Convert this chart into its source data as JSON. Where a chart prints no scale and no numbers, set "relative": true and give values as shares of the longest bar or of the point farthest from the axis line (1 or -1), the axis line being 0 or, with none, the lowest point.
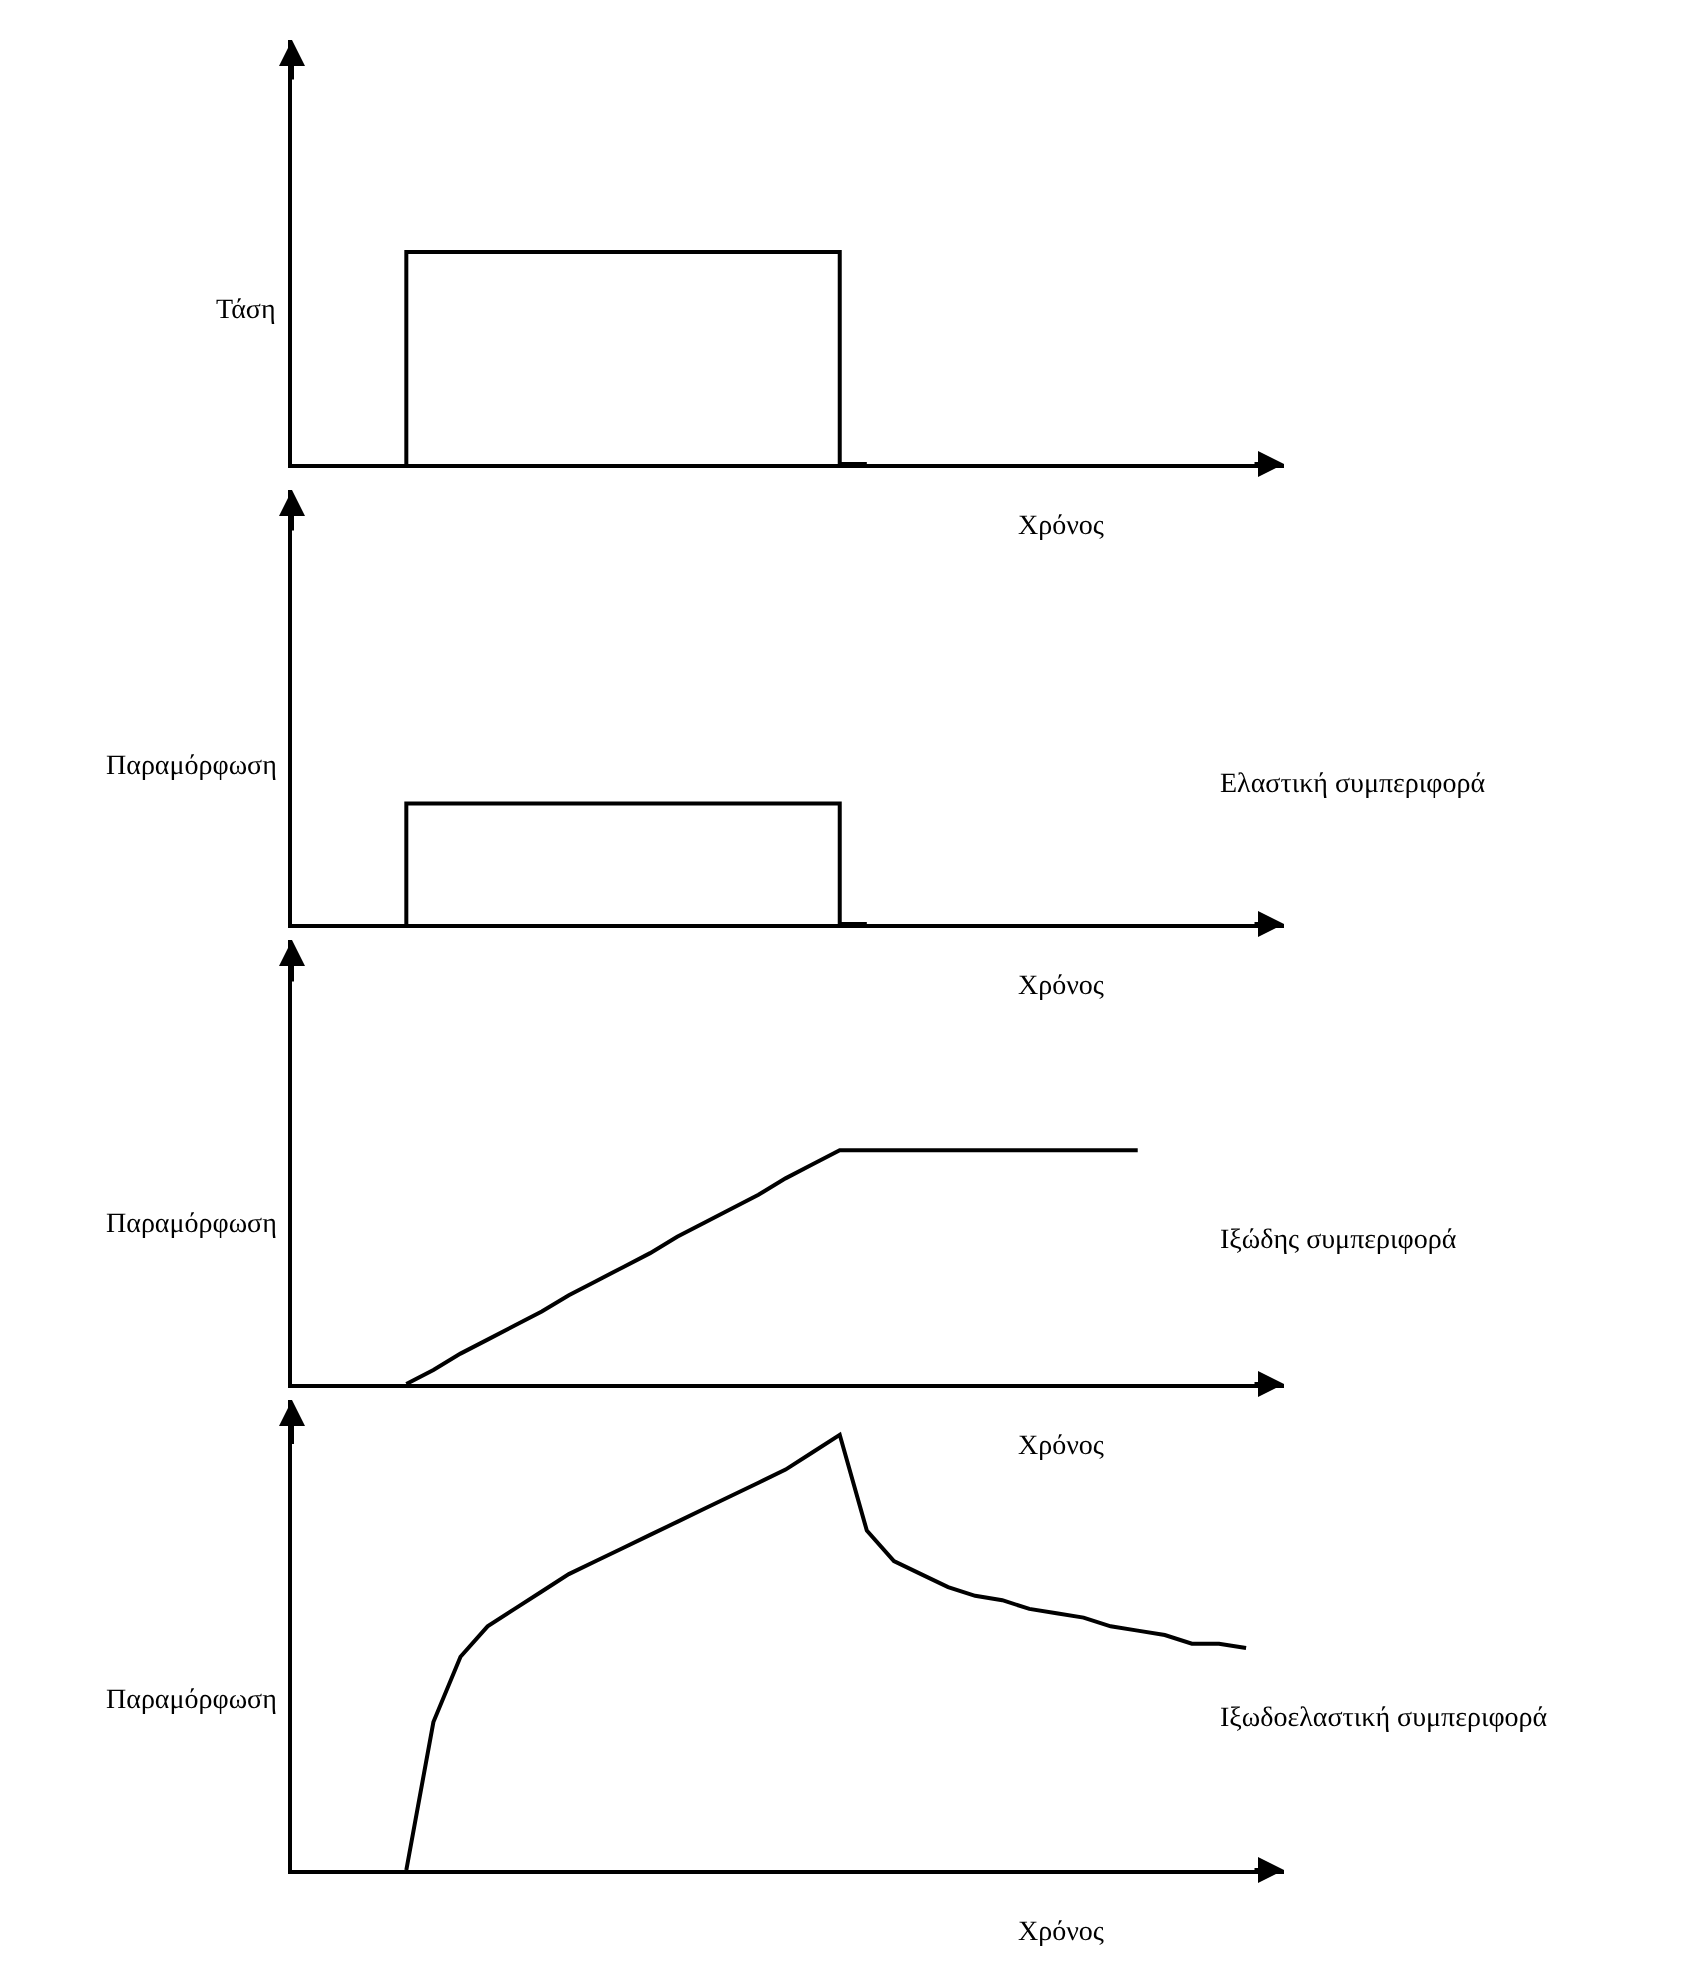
{
  "chart_data": [
    {
      "type": "step",
      "relative": true,
      "ylabel": "Τάση",
      "xlabel": "Χρόνος",
      "color": "#000000",
      "categories": [
        null,
        null,
        null,
        null,
        null,
        null,
        null,
        null,
        null,
        null,
        null,
        null,
        null,
        null,
        null,
        null,
        null,
        null,
        null,
        null,
        null,
        null,
        null,
        null,
        null,
        null,
        null,
        null,
        null,
        null,
        null,
        null,
        null,
        null,
        null,
        null
      ],
      "values": [
        null,
        null,
        null,
        null,
        0,
        1,
        1,
        1,
        1,
        1,
        1,
        1,
        1,
        1,
        1,
        1,
        1,
        1,
        1,
        1,
        1,
        0,
        null,
        null,
        null,
        null,
        null,
        null,
        null,
        null,
        null,
        null,
        null,
        null,
        null,
        null
      ]
    },
    {
      "type": "step",
      "relative": true,
      "ylabel": "Παραμόρφωση",
      "xlabel": "Χρόνος",
      "annotations": [
        "Ελαστική συμπεριφορά"
      ],
      "color": "#000000",
      "categories": [
        null,
        null,
        null,
        null,
        null,
        null,
        null,
        null,
        null,
        null,
        null,
        null,
        null,
        null,
        null,
        null,
        null,
        null,
        null,
        null,
        null,
        null,
        null,
        null,
        null,
        null,
        null,
        null,
        null,
        null,
        null,
        null,
        null,
        null,
        null,
        null
      ],
      "values": [
        null,
        null,
        null,
        null,
        0,
        1,
        1,
        1,
        1,
        1,
        1,
        1,
        1,
        1,
        1,
        1,
        1,
        1,
        1,
        1,
        1,
        0,
        null,
        null,
        null,
        null,
        null,
        null,
        null,
        null,
        null,
        null,
        null,
        null,
        null,
        null
      ]
    },
    {
      "type": "line",
      "relative": true,
      "ylabel": "Παραμόρφωση",
      "xlabel": "Χρόνος",
      "annotations": [
        "Ιξώδης συμπεριφορά"
      ],
      "color": "#000000",
      "categories": [
        null,
        null,
        null,
        null,
        null,
        null,
        null,
        null,
        null,
        null,
        null,
        null,
        null,
        null,
        null,
        null,
        null,
        null,
        null,
        null,
        null,
        null,
        null,
        null,
        null,
        null,
        null,
        null,
        null,
        null,
        null,
        null,
        null,
        null,
        null,
        null
      ],
      "values": [
        null,
        null,
        null,
        null,
        0,
        0.06,
        0.13,
        0.19,
        0.25,
        0.31,
        0.38,
        0.44,
        0.5,
        0.56,
        0.63,
        0.69,
        0.75,
        0.81,
        0.88,
        0.94,
        1,
        1,
        1,
        1,
        1,
        1,
        1,
        1,
        1,
        1,
        1,
        1,
        null,
        null,
        null,
        null
      ]
    },
    {
      "type": "line",
      "relative": true,
      "ylabel": "Παραμόρφωση",
      "xlabel": "Χρόνος",
      "annotations": [
        "Ιξωδοελαστική συμπεριφορά"
      ],
      "color": "#000000",
      "categories": [
        null,
        null,
        null,
        null,
        null,
        null,
        null,
        null,
        null,
        null,
        null,
        null,
        null,
        null,
        null,
        null,
        null,
        null,
        null,
        null,
        null,
        null,
        null,
        null,
        null,
        null,
        null,
        null,
        null,
        null,
        null,
        null,
        null,
        null,
        null,
        null
      ],
      "values": [
        null,
        null,
        null,
        null,
        0,
        0.34,
        0.49,
        0.56,
        0.6,
        0.64,
        0.68,
        0.71,
        0.74,
        0.77,
        0.8,
        0.83,
        0.86,
        0.89,
        0.92,
        0.96,
        1,
        0.78,
        0.71,
        0.68,
        0.65,
        0.63,
        0.62,
        0.6,
        0.59,
        0.58,
        0.56,
        0.55,
        0.54,
        0.52,
        0.52,
        0.51
      ]
    }
  ]
}
